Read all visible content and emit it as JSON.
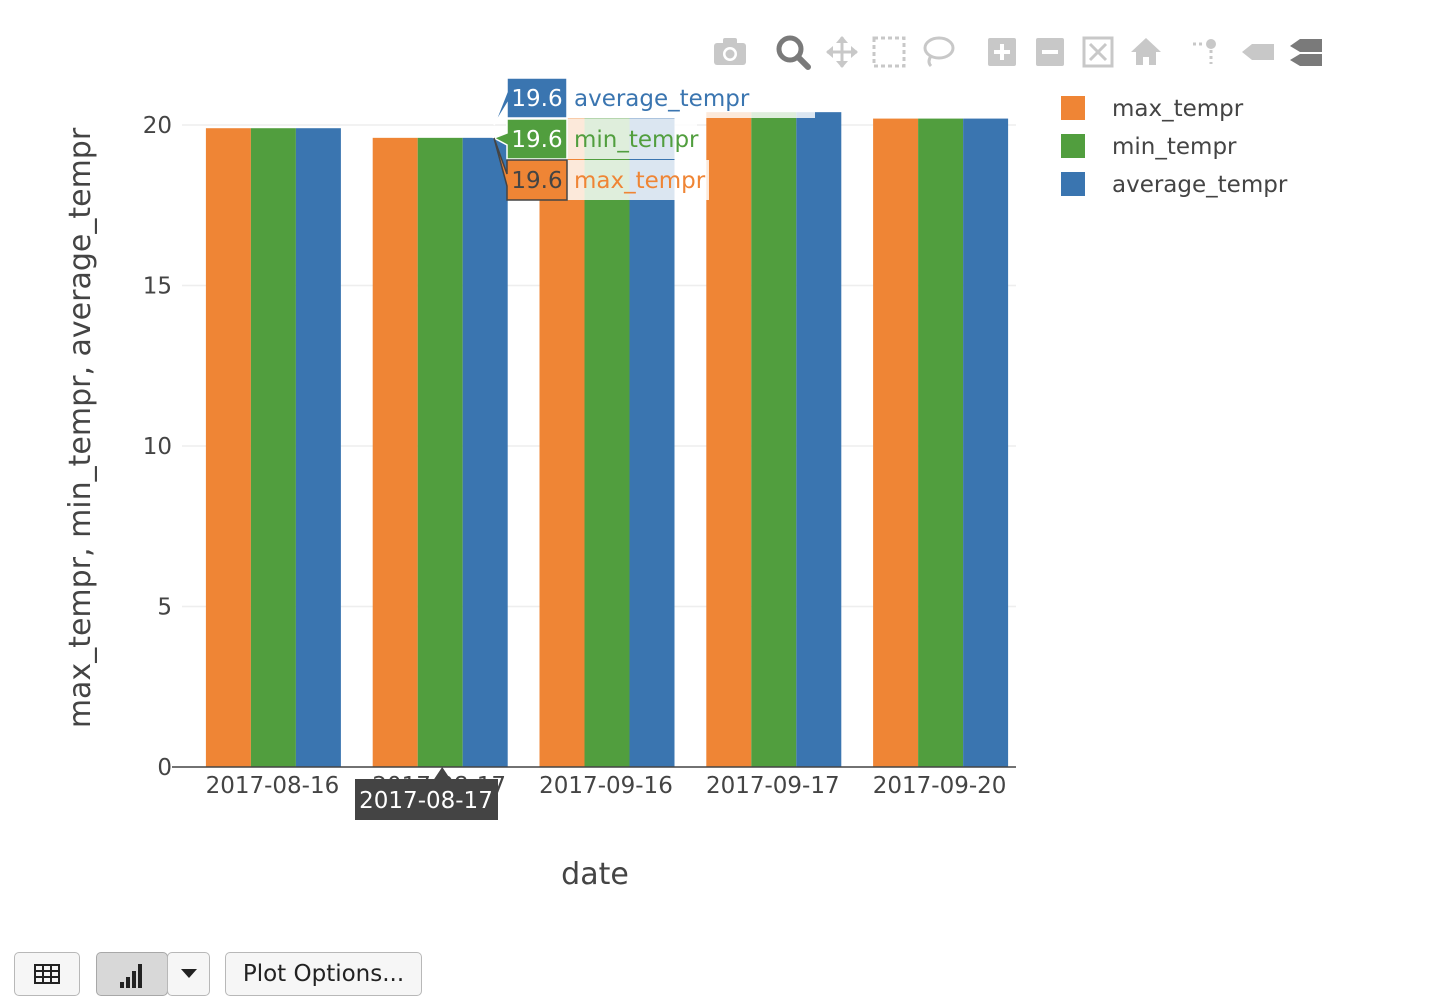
{
  "modebar": {
    "icons": [
      "camera-icon",
      "zoom-icon",
      "pan-icon",
      "box-select-icon",
      "lasso-select-icon",
      "zoom-in-icon",
      "zoom-out-icon",
      "autoscale-icon",
      "reset-axes-icon",
      "toggle-spikelines-icon",
      "hover-closest-icon",
      "hover-compare-icon"
    ]
  },
  "chart_data": {
    "type": "bar",
    "categories": [
      "2017-08-16",
      "2017-08-17",
      "2017-09-16",
      "2017-09-17",
      "2017-09-20"
    ],
    "series": [
      {
        "name": "max_tempr",
        "color": "#ef8535",
        "values": [
          19.9,
          19.6,
          20.2,
          20.4,
          20.2
        ]
      },
      {
        "name": "min_tempr",
        "color": "#519e3e",
        "values": [
          19.9,
          19.6,
          20.2,
          20.4,
          20.2
        ]
      },
      {
        "name": "average_tempr",
        "color": "#3a75b0",
        "values": [
          19.9,
          19.6,
          20.2,
          20.4,
          20.2
        ]
      }
    ],
    "xlabel": "date",
    "ylabel": "max_tempr, min_tempr, average_tempr",
    "ylim": [
      0,
      20.4
    ],
    "yticks": [
      0,
      5,
      10,
      15,
      20
    ],
    "grid": true,
    "legend_position": "top-right",
    "hover": {
      "category": "2017-08-17",
      "items": [
        {
          "value": "19.6",
          "name": "average_tempr",
          "color": "#3a75b0"
        },
        {
          "value": "19.6",
          "name": "min_tempr",
          "color": "#519e3e"
        },
        {
          "value": "19.6",
          "name": "max_tempr",
          "color": "#ef8535"
        }
      ]
    }
  },
  "controls": {
    "table_icon": "table-icon",
    "chart_icon": "bar-chart-icon",
    "dropdown_icon": "caret-down-icon",
    "plot_options_label": "Plot Options..."
  }
}
